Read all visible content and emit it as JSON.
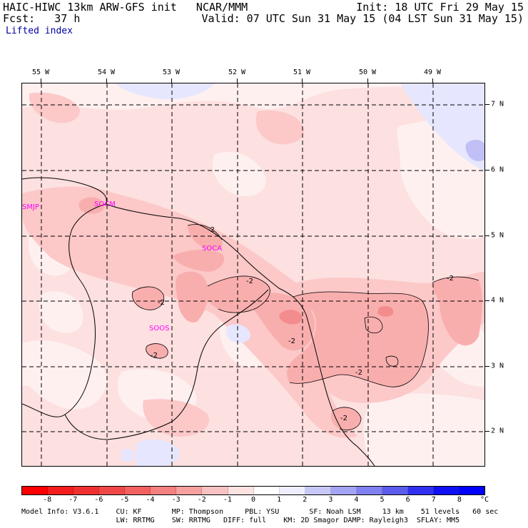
{
  "header": {
    "title": "HAIC-HIWC 13km ARW-GFS init   NCAR/MMM",
    "fcst_label": "Fcst:   37 h",
    "init": "Init: 18 UTC Fri 29 May 15",
    "valid": "Valid: 07 UTC Sun 31 May 15 (04 LST Sun 31 May 15)",
    "field": "Lifted index"
  },
  "map": {
    "lon_labels": [
      "55 W",
      "54 W",
      "53 W",
      "52 W",
      "51 W",
      "50 W",
      "49 W"
    ],
    "lat_labels": [
      "7 N",
      "6 N",
      "5 N",
      "4 N",
      "3 N",
      "2 N"
    ],
    "stations": [
      "SMJP",
      "SOCM",
      "SOCA",
      "SOOS"
    ],
    "contour_labels": [
      "-2",
      "-2",
      "-2",
      "-2",
      "-2",
      "-2",
      "-2",
      "-2"
    ],
    "colors": {
      "background": "#fde0e0",
      "light": "#fff0f0",
      "medium": "#fcc8c8",
      "strong": "#f9aeae",
      "core": "#f38c8c",
      "blue_light": "#e6e6ff",
      "blue_medium": "#c0c0f6",
      "station": "#ff00ff"
    }
  },
  "colorbar": {
    "labels": [
      "-8",
      "-7",
      "-6",
      "-5",
      "-4",
      "-3",
      "-2",
      "-1",
      "0",
      "1",
      "2",
      "3",
      "4",
      "5",
      "6",
      "7",
      "8"
    ],
    "unit": "°C",
    "colors": [
      "#ff0000",
      "#f41c1c",
      "#f03030",
      "#f04848",
      "#f36060",
      "#f48080",
      "#f6a0a0",
      "#f9c2c2",
      "#fde2e2",
      "#ffffff",
      "#eeeeff",
      "#c8c8f8",
      "#a4a4f4",
      "#8080f0",
      "#5c5cec",
      "#3030f0",
      "#1010f4",
      "#0000ff"
    ]
  },
  "model_info": {
    "line1": "Model Info: V3.6.1    CU: KF       MP: Thompson     PBL: YSU       SF: Noah LSM     13 km    51 levels   60 sec",
    "line2": "                      LW: RRTMG    SW: RRTMG   DIFF: full    KM: 2D Smagor DAMP: Rayleigh3  SFLAY: MM5"
  }
}
